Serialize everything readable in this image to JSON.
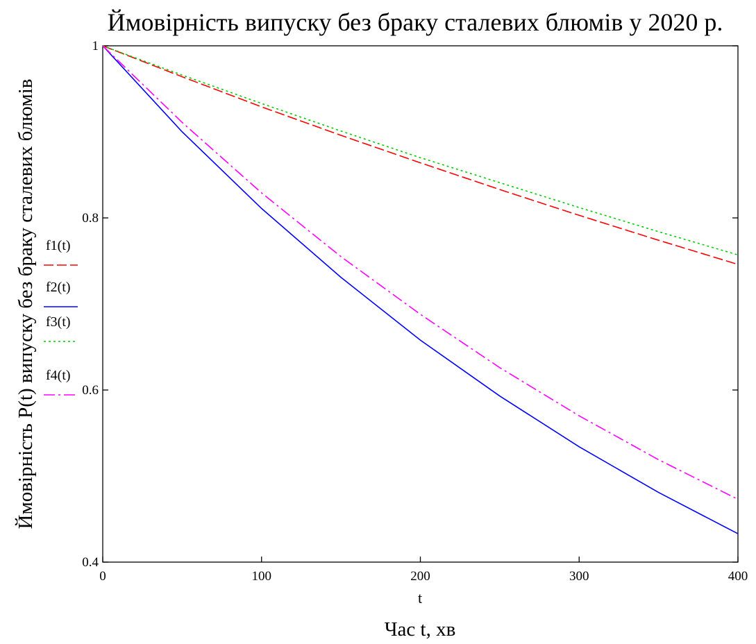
{
  "chart_data": {
    "type": "line",
    "title": "Ймовірність випуску без браку сталевих блюмів у 2020 р.",
    "xlabel": "Час t, хв",
    "x_var_label": "t",
    "ylabel": "Ймовірність P(t) випуску без браку сталевих блюмів",
    "xlim": [
      0,
      400
    ],
    "ylim": [
      0.4,
      1
    ],
    "x_ticks": [
      0,
      100,
      200,
      300,
      400
    ],
    "y_ticks": [
      0.4,
      0.6,
      0.8,
      1
    ],
    "grid": false,
    "legend_position": "left",
    "x": [
      0,
      50,
      100,
      150,
      200,
      250,
      300,
      350,
      400
    ],
    "series": [
      {
        "name": "f1(t)",
        "color": "#ff0000",
        "dash": "dash",
        "values": [
          1.0,
          0.964,
          0.929,
          0.896,
          0.864,
          0.833,
          0.803,
          0.774,
          0.746
        ]
      },
      {
        "name": "f2(t)",
        "color": "#0000ff",
        "dash": "solid",
        "values": [
          1.0,
          0.9,
          0.811,
          0.731,
          0.658,
          0.593,
          0.534,
          0.481,
          0.433
        ]
      },
      {
        "name": "f3(t)",
        "color": "#00cc00",
        "dash": "dot",
        "values": [
          1.0,
          0.966,
          0.933,
          0.901,
          0.87,
          0.841,
          0.812,
          0.784,
          0.757
        ]
      },
      {
        "name": "f4(t)",
        "color": "#ff00ff",
        "dash": "dashdot",
        "values": [
          1.0,
          0.911,
          0.829,
          0.755,
          0.688,
          0.626,
          0.57,
          0.519,
          0.473
        ]
      }
    ]
  }
}
